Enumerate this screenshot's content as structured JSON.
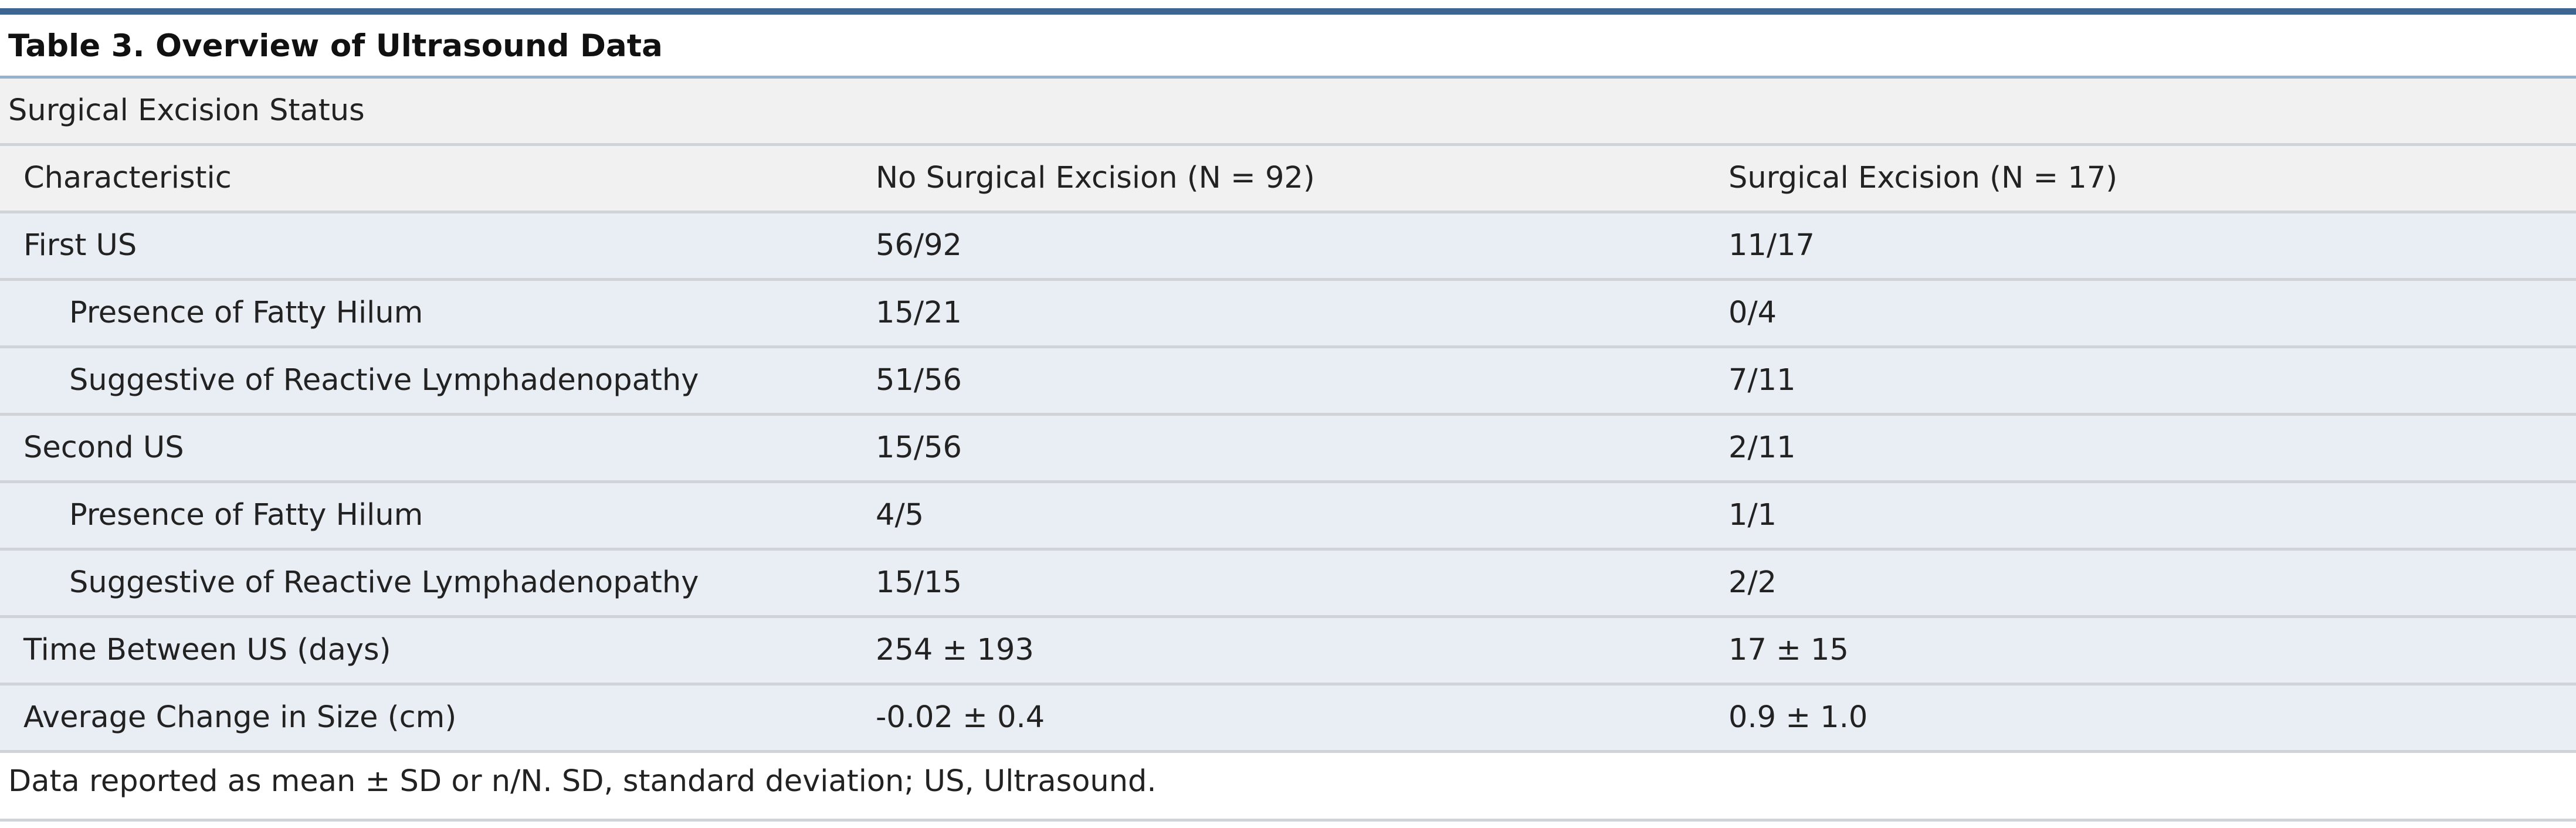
{
  "table": {
    "title": "Table 3. Overview of Ultrasound Data",
    "banner": "Surgical Excision Status",
    "columns": [
      "Characteristic",
      "No Surgical Excision (N = 92)",
      "Surgical Excision (N = 17)"
    ],
    "rows": [
      {
        "label": "First US",
        "no_excision": "56/92",
        "excision": "11/17"
      },
      {
        "label": "Presence of Fatty Hilum",
        "no_excision": "15/21",
        "excision": "0/4"
      },
      {
        "label": "Suggestive of Reactive Lymphadenopathy",
        "no_excision": "51/56",
        "excision": "7/11"
      },
      {
        "label": "Second US",
        "no_excision": "15/56",
        "excision": "2/11"
      },
      {
        "label": "Presence of Fatty Hilum",
        "no_excision": "4/5",
        "excision": "1/1"
      },
      {
        "label": "Suggestive of Reactive Lymphadenopathy",
        "no_excision": "15/15",
        "excision": "2/2"
      },
      {
        "label": "Time Between US (days)",
        "no_excision": "254 ± 193",
        "excision": "17 ± 15"
      },
      {
        "label": "Average Change in Size (cm)",
        "no_excision": "-0.02 ± 0.4",
        "excision": "0.9 ± 1.0"
      }
    ],
    "footnote": "Data reported as mean ± SD or n/N. SD, standard deviation; US, Ultrasound."
  },
  "colors": {
    "top_rule": "#3e6491",
    "title_rule": "#95b1d2",
    "header_background": "#f1f1f1",
    "row_background": "#e9edf4",
    "row_divider": "#d0d4d9"
  }
}
